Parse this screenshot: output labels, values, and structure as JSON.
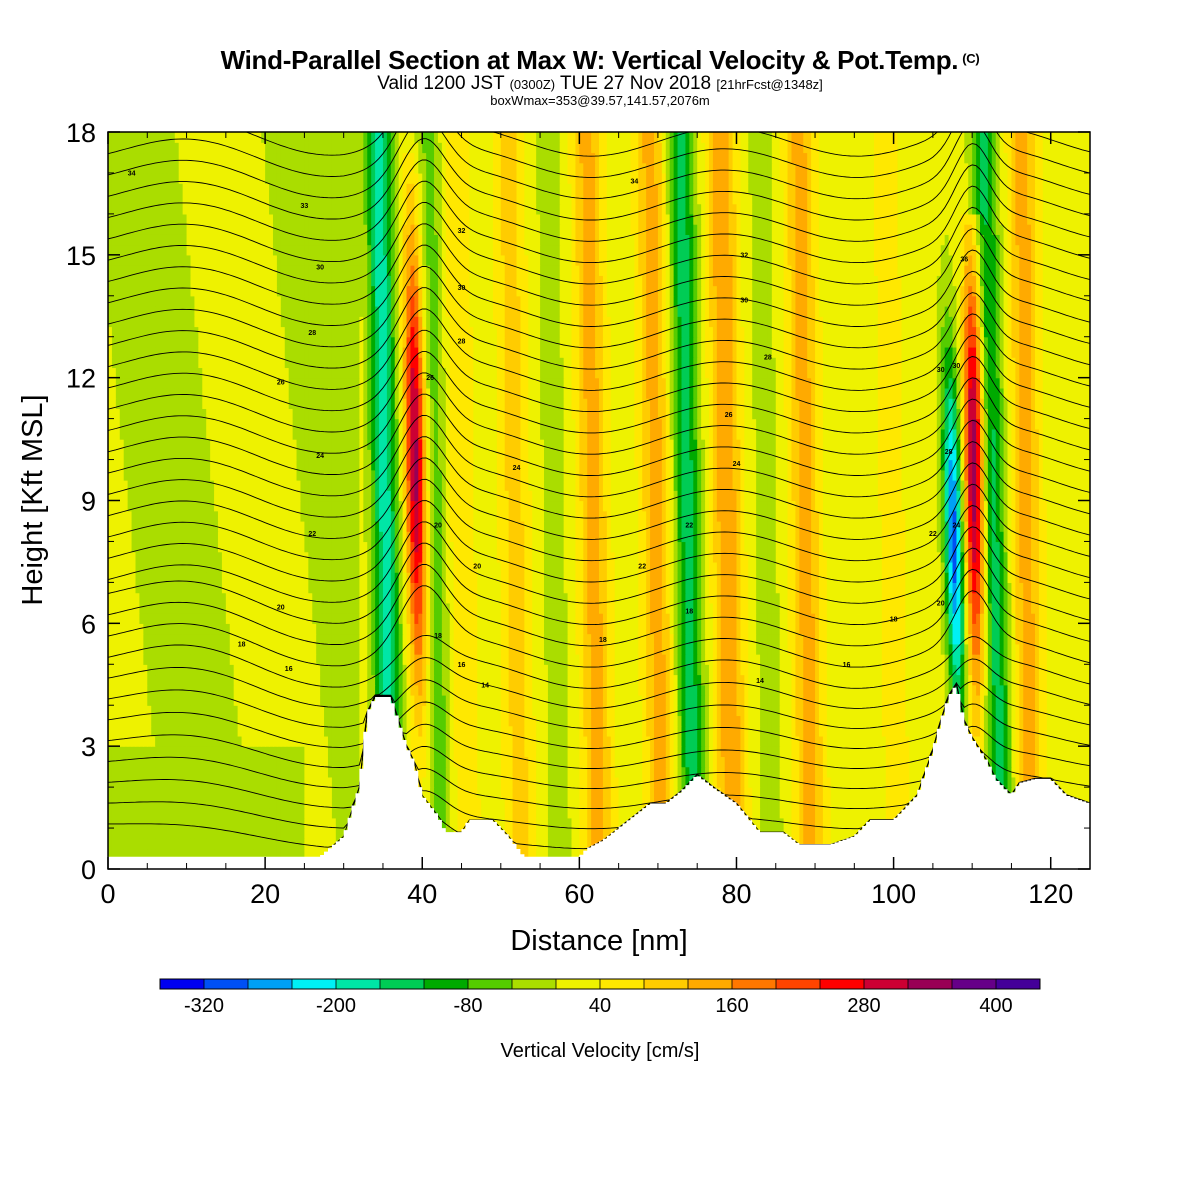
{
  "header": {
    "title": "Wind-Parallel Section at Max W: Vertical Velocity & Pot.Temp.",
    "title_mark": "(C)",
    "sub_a": "Valid 1200 JST ",
    "sub_b": "(0300Z)",
    "sub_c": " TUE 27 Nov 2018 ",
    "sub_d": "[21hrFcst@1348z]",
    "sub2": "boxWmax=353@39.57,141.57,2076m"
  },
  "chart_data": {
    "type": "heatmap",
    "title": "Wind-Parallel Section at Max W: Vertical Velocity & Pot.Temp.",
    "xlabel": "Distance [nm]",
    "ylabel": "Height [Kft MSL]",
    "xlim": [
      0,
      125
    ],
    "ylim": [
      0,
      18
    ],
    "x_ticks": [
      0,
      20,
      40,
      60,
      80,
      100,
      120
    ],
    "y_ticks": [
      0,
      3,
      6,
      9,
      12,
      15,
      18
    ],
    "colorbar": {
      "title": "Vertical Velocity [cm/s]",
      "tick_values": [
        -320,
        -200,
        -80,
        40,
        160,
        280,
        400
      ],
      "bins": [
        -360,
        -320,
        -280,
        -240,
        -200,
        -160,
        -120,
        -80,
        -40,
        0,
        40,
        80,
        120,
        160,
        200,
        240,
        280,
        320,
        360,
        400,
        440
      ],
      "colors": [
        "#0000f0",
        "#0050f5",
        "#00a0f5",
        "#00f0f5",
        "#00e6a6",
        "#00cc55",
        "#00aa00",
        "#55cc00",
        "#aadd00",
        "#eef200",
        "#ffe800",
        "#ffcc00",
        "#ffaa00",
        "#ff7700",
        "#ff4400",
        "#ff0000",
        "#cc0033",
        "#990055",
        "#660088",
        "#440099"
      ]
    },
    "updraft_bands": [
      {
        "x": 39.5,
        "peak_cms": 320,
        "top_kft": 17.5
      },
      {
        "x": 45,
        "peak_cms": 60,
        "top_kft": 18
      },
      {
        "x": 52,
        "peak_cms": 80,
        "top_kft": 18
      },
      {
        "x": 62,
        "peak_cms": 120,
        "top_kft": 18
      },
      {
        "x": 70,
        "peak_cms": 120,
        "top_kft": 18
      },
      {
        "x": 79,
        "peak_cms": 140,
        "top_kft": 18
      },
      {
        "x": 89,
        "peak_cms": 120,
        "top_kft": 18
      },
      {
        "x": 100,
        "peak_cms": 40,
        "top_kft": 18
      },
      {
        "x": 110.5,
        "peak_cms": 353,
        "top_kft": 16
      },
      {
        "x": 117,
        "peak_cms": 120,
        "top_kft": 18
      }
    ],
    "downdraft_bands": [
      {
        "x": 35.5,
        "peak_cms": -200
      },
      {
        "x": 42,
        "peak_cms": -80
      },
      {
        "x": 57,
        "peak_cms": -40
      },
      {
        "x": 74,
        "peak_cms": -160
      },
      {
        "x": 84,
        "peak_cms": -40
      },
      {
        "x": 108,
        "peak_cms": -320
      },
      {
        "x": 113,
        "peak_cms": -160
      }
    ],
    "terrain_profile_kft": [
      [
        0,
        0.3
      ],
      [
        27,
        0.3
      ],
      [
        30,
        0.8
      ],
      [
        32,
        2
      ],
      [
        33,
        3.8
      ],
      [
        34,
        4.2
      ],
      [
        36,
        4.2
      ],
      [
        37,
        3.6
      ],
      [
        38,
        3.0
      ],
      [
        39,
        2.6
      ],
      [
        40,
        1.8
      ],
      [
        42,
        1.3
      ],
      [
        43,
        0.9
      ],
      [
        45,
        0.9
      ],
      [
        46,
        1.2
      ],
      [
        49,
        1.2
      ],
      [
        51,
        0.8
      ],
      [
        53,
        0.3
      ],
      [
        60,
        0.3
      ],
      [
        61,
        0.5
      ],
      [
        63,
        0.7
      ],
      [
        65,
        1.0
      ],
      [
        67,
        1.3
      ],
      [
        69,
        1.6
      ],
      [
        71,
        1.6
      ],
      [
        73,
        1.9
      ],
      [
        75,
        2.3
      ],
      [
        77,
        2.0
      ],
      [
        80,
        1.6
      ],
      [
        83,
        0.9
      ],
      [
        86,
        0.9
      ],
      [
        88,
        0.6
      ],
      [
        92,
        0.6
      ],
      [
        95,
        0.8
      ],
      [
        97,
        1.2
      ],
      [
        100,
        1.2
      ],
      [
        103,
        1.8
      ],
      [
        105,
        2.9
      ],
      [
        106,
        3.6
      ],
      [
        107,
        4.2
      ],
      [
        108,
        4.5
      ],
      [
        109,
        3.6
      ],
      [
        110,
        3.2
      ],
      [
        111,
        2.9
      ],
      [
        112,
        2.6
      ],
      [
        113,
        2.2
      ],
      [
        115,
        1.8
      ],
      [
        116,
        2.1
      ],
      [
        118,
        2.2
      ],
      [
        120,
        2.2
      ],
      [
        122,
        1.8
      ],
      [
        125,
        1.6
      ]
    ],
    "theta_contour_labels": [
      {
        "x": 3,
        "y": 17.0,
        "text": "34"
      },
      {
        "x": 25,
        "y": 16.2,
        "text": "33"
      },
      {
        "x": 27,
        "y": 14.7,
        "text": "30"
      },
      {
        "x": 26,
        "y": 13.1,
        "text": "28"
      },
      {
        "x": 22,
        "y": 11.9,
        "text": "26"
      },
      {
        "x": 27,
        "y": 10.1,
        "text": "24"
      },
      {
        "x": 26,
        "y": 8.2,
        "text": "22"
      },
      {
        "x": 22,
        "y": 6.4,
        "text": "20"
      },
      {
        "x": 17,
        "y": 5.5,
        "text": "18"
      },
      {
        "x": 23,
        "y": 4.9,
        "text": "16"
      },
      {
        "x": 45,
        "y": 15.6,
        "text": "32"
      },
      {
        "x": 45,
        "y": 14.2,
        "text": "30"
      },
      {
        "x": 45,
        "y": 12.9,
        "text": "28"
      },
      {
        "x": 41,
        "y": 12.0,
        "text": "26"
      },
      {
        "x": 52,
        "y": 9.8,
        "text": "24"
      },
      {
        "x": 42,
        "y": 8.4,
        "text": "20"
      },
      {
        "x": 47,
        "y": 7.4,
        "text": "20"
      },
      {
        "x": 42,
        "y": 5.7,
        "text": "18"
      },
      {
        "x": 45,
        "y": 5.0,
        "text": "16"
      },
      {
        "x": 48,
        "y": 4.5,
        "text": "14"
      },
      {
        "x": 67,
        "y": 16.8,
        "text": "34"
      },
      {
        "x": 81,
        "y": 15.0,
        "text": "32"
      },
      {
        "x": 81,
        "y": 13.9,
        "text": "30"
      },
      {
        "x": 84,
        "y": 12.5,
        "text": "28"
      },
      {
        "x": 79,
        "y": 11.1,
        "text": "26"
      },
      {
        "x": 80,
        "y": 9.9,
        "text": "24"
      },
      {
        "x": 74,
        "y": 8.4,
        "text": "22"
      },
      {
        "x": 68,
        "y": 7.4,
        "text": "22"
      },
      {
        "x": 74,
        "y": 6.3,
        "text": "18"
      },
      {
        "x": 63,
        "y": 5.6,
        "text": "18"
      },
      {
        "x": 83,
        "y": 4.6,
        "text": "14"
      },
      {
        "x": 94,
        "y": 5.0,
        "text": "16"
      },
      {
        "x": 100,
        "y": 6.1,
        "text": "18"
      },
      {
        "x": 109,
        "y": 14.9,
        "text": "36"
      },
      {
        "x": 106,
        "y": 12.2,
        "text": "30"
      },
      {
        "x": 108,
        "y": 12.3,
        "text": "30"
      },
      {
        "x": 107,
        "y": 10.2,
        "text": "28"
      },
      {
        "x": 108,
        "y": 8.4,
        "text": "24"
      },
      {
        "x": 105,
        "y": 8.2,
        "text": "22"
      },
      {
        "x": 106,
        "y": 6.5,
        "text": "20"
      }
    ]
  }
}
